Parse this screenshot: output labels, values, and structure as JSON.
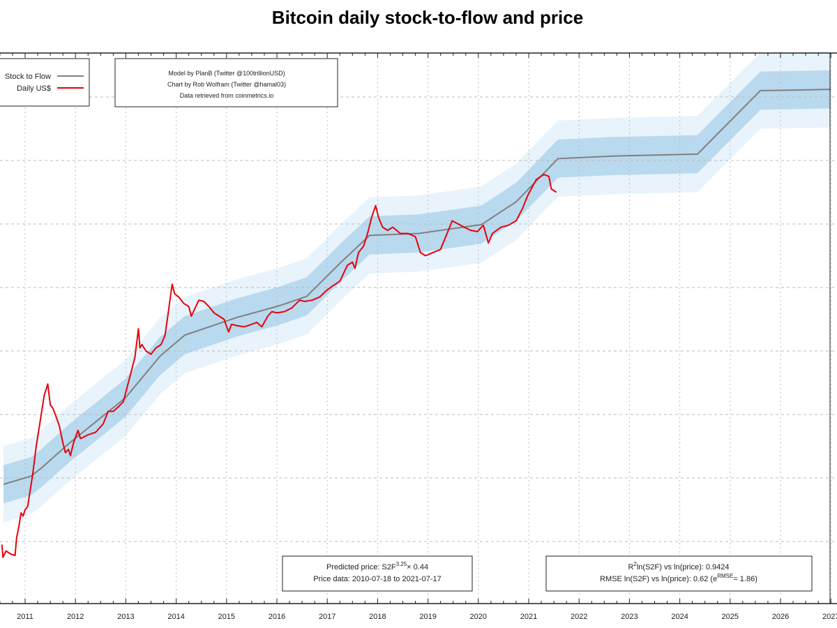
{
  "chart_data": {
    "type": "line",
    "title": "Bitcoin daily stock-to-flow and price",
    "xlabel": "",
    "ylabel": "",
    "yscale": "log10",
    "xlim": [
      2010.5,
      2027.0
    ],
    "ylim_log10": [
      -2.0,
      6.68
    ],
    "grid": true,
    "x_ticks": [
      "2011",
      "2012",
      "2013",
      "2014",
      "2015",
      "2016",
      "2017",
      "2018",
      "2019",
      "2020",
      "2021",
      "2022",
      "2023",
      "2024",
      "2025",
      "2026",
      "2027"
    ],
    "y_gridlines_log10": [
      -1,
      0,
      1,
      2,
      3,
      4,
      5,
      6
    ],
    "legend": {
      "position": "top-left",
      "entries": [
        {
          "label": "Stock to Flow",
          "color": "#808080"
        },
        {
          "label": "Daily US$",
          "color": "#e8000b"
        }
      ]
    },
    "bands": {
      "inner_halfwidth_log10": 0.3,
      "outer_halfwidth_log10": 0.6,
      "inner_color": "#b9d9ee",
      "outer_color": "#e8f3fb"
    },
    "series": [
      {
        "name": "Stock to Flow",
        "color": "#808080",
        "points_year_log10": [
          [
            2010.57,
            -0.1
          ],
          [
            2011.12,
            0.03
          ],
          [
            2011.33,
            0.16
          ],
          [
            2011.88,
            0.55
          ],
          [
            2012.99,
            1.26
          ],
          [
            2013.68,
            1.92
          ],
          [
            2014.17,
            2.25
          ],
          [
            2015.21,
            2.53
          ],
          [
            2016.04,
            2.71
          ],
          [
            2016.59,
            2.86
          ],
          [
            2017.29,
            3.41
          ],
          [
            2017.84,
            3.82
          ],
          [
            2018.81,
            3.85
          ],
          [
            2020.06,
            3.99
          ],
          [
            2020.75,
            4.35
          ],
          [
            2021.58,
            5.03
          ],
          [
            2022.69,
            5.07
          ],
          [
            2024.35,
            5.1
          ],
          [
            2025.6,
            6.1
          ],
          [
            2027.0,
            6.12
          ]
        ]
      },
      {
        "name": "Daily US$",
        "color": "#e8000b",
        "points_year_log10": [
          [
            2010.54,
            -1.05
          ],
          [
            2010.56,
            -1.25
          ],
          [
            2010.62,
            -1.15
          ],
          [
            2010.72,
            -1.2
          ],
          [
            2010.8,
            -1.22
          ],
          [
            2010.83,
            -0.95
          ],
          [
            2010.88,
            -0.75
          ],
          [
            2010.92,
            -0.55
          ],
          [
            2010.96,
            -0.6
          ],
          [
            2011.0,
            -0.5
          ],
          [
            2011.05,
            -0.45
          ],
          [
            2011.1,
            -0.2
          ],
          [
            2011.15,
            0.05
          ],
          [
            2011.22,
            0.5
          ],
          [
            2011.3,
            0.9
          ],
          [
            2011.38,
            1.3
          ],
          [
            2011.45,
            1.48
          ],
          [
            2011.5,
            1.15
          ],
          [
            2011.55,
            1.1
          ],
          [
            2011.6,
            1.0
          ],
          [
            2011.68,
            0.82
          ],
          [
            2011.75,
            0.55
          ],
          [
            2011.8,
            0.4
          ],
          [
            2011.86,
            0.45
          ],
          [
            2011.9,
            0.35
          ],
          [
            2011.96,
            0.55
          ],
          [
            2012.05,
            0.75
          ],
          [
            2012.1,
            0.62
          ],
          [
            2012.25,
            0.68
          ],
          [
            2012.4,
            0.72
          ],
          [
            2012.55,
            0.85
          ],
          [
            2012.65,
            1.05
          ],
          [
            2012.75,
            1.05
          ],
          [
            2012.85,
            1.12
          ],
          [
            2012.95,
            1.2
          ],
          [
            2013.05,
            1.5
          ],
          [
            2013.18,
            1.9
          ],
          [
            2013.25,
            2.35
          ],
          [
            2013.28,
            2.05
          ],
          [
            2013.32,
            2.1
          ],
          [
            2013.4,
            2.0
          ],
          [
            2013.5,
            1.95
          ],
          [
            2013.6,
            2.05
          ],
          [
            2013.7,
            2.1
          ],
          [
            2013.78,
            2.25
          ],
          [
            2013.85,
            2.65
          ],
          [
            2013.92,
            3.05
          ],
          [
            2013.97,
            2.9
          ],
          [
            2014.05,
            2.85
          ],
          [
            2014.15,
            2.75
          ],
          [
            2014.25,
            2.7
          ],
          [
            2014.3,
            2.55
          ],
          [
            2014.45,
            2.8
          ],
          [
            2014.55,
            2.78
          ],
          [
            2014.65,
            2.7
          ],
          [
            2014.75,
            2.6
          ],
          [
            2014.85,
            2.55
          ],
          [
            2014.95,
            2.5
          ],
          [
            2015.04,
            2.3
          ],
          [
            2015.1,
            2.42
          ],
          [
            2015.2,
            2.4
          ],
          [
            2015.35,
            2.38
          ],
          [
            2015.5,
            2.42
          ],
          [
            2015.6,
            2.45
          ],
          [
            2015.7,
            2.38
          ],
          [
            2015.82,
            2.55
          ],
          [
            2015.9,
            2.62
          ],
          [
            2016.0,
            2.6
          ],
          [
            2016.15,
            2.62
          ],
          [
            2016.3,
            2.68
          ],
          [
            2016.45,
            2.8
          ],
          [
            2016.55,
            2.78
          ],
          [
            2016.7,
            2.8
          ],
          [
            2016.85,
            2.85
          ],
          [
            2016.98,
            2.95
          ],
          [
            2017.1,
            3.02
          ],
          [
            2017.25,
            3.1
          ],
          [
            2017.4,
            3.35
          ],
          [
            2017.5,
            3.4
          ],
          [
            2017.55,
            3.3
          ],
          [
            2017.62,
            3.55
          ],
          [
            2017.72,
            3.65
          ],
          [
            2017.8,
            3.85
          ],
          [
            2017.88,
            4.1
          ],
          [
            2017.96,
            4.29
          ],
          [
            2018.02,
            4.1
          ],
          [
            2018.1,
            3.95
          ],
          [
            2018.2,
            3.9
          ],
          [
            2018.3,
            3.95
          ],
          [
            2018.45,
            3.85
          ],
          [
            2018.6,
            3.85
          ],
          [
            2018.75,
            3.8
          ],
          [
            2018.85,
            3.55
          ],
          [
            2018.95,
            3.5
          ],
          [
            2019.1,
            3.55
          ],
          [
            2019.25,
            3.6
          ],
          [
            2019.38,
            3.85
          ],
          [
            2019.48,
            4.05
          ],
          [
            2019.6,
            4.0
          ],
          [
            2019.72,
            3.95
          ],
          [
            2019.85,
            3.9
          ],
          [
            2019.98,
            3.88
          ],
          [
            2020.1,
            3.98
          ],
          [
            2020.2,
            3.7
          ],
          [
            2020.28,
            3.85
          ],
          [
            2020.45,
            3.95
          ],
          [
            2020.6,
            3.98
          ],
          [
            2020.75,
            4.05
          ],
          [
            2020.88,
            4.25
          ],
          [
            2020.98,
            4.45
          ],
          [
            2021.05,
            4.55
          ],
          [
            2021.15,
            4.7
          ],
          [
            2021.3,
            4.78
          ],
          [
            2021.4,
            4.75
          ],
          [
            2021.45,
            4.55
          ],
          [
            2021.55,
            4.5
          ]
        ]
      }
    ],
    "annotations": {
      "credits": [
        "Model by PlanB (Twitter @100trillionUSD)",
        "Chart by Rob Wolfram (Twitter @hamal03)",
        "Data retrieved from coinmetrics.io"
      ],
      "model": {
        "line1_prefix": "Predicted price: S2F",
        "line1_exponent": "3.25",
        "line1_suffix": "× 0.44",
        "line2": "Price data: 2010-07-18 to 2021-07-17"
      },
      "stats": {
        "r2_prefix": "R",
        "r2_sup": "2",
        "r2_text": "ln(S2F) vs ln(price): 0.9424",
        "rmse_prefix": "RMSE ln(S2F) vs ln(price): 0.62 (e",
        "rmse_sup": "RMSE",
        "rmse_suffix": "= 1.86)"
      }
    }
  }
}
